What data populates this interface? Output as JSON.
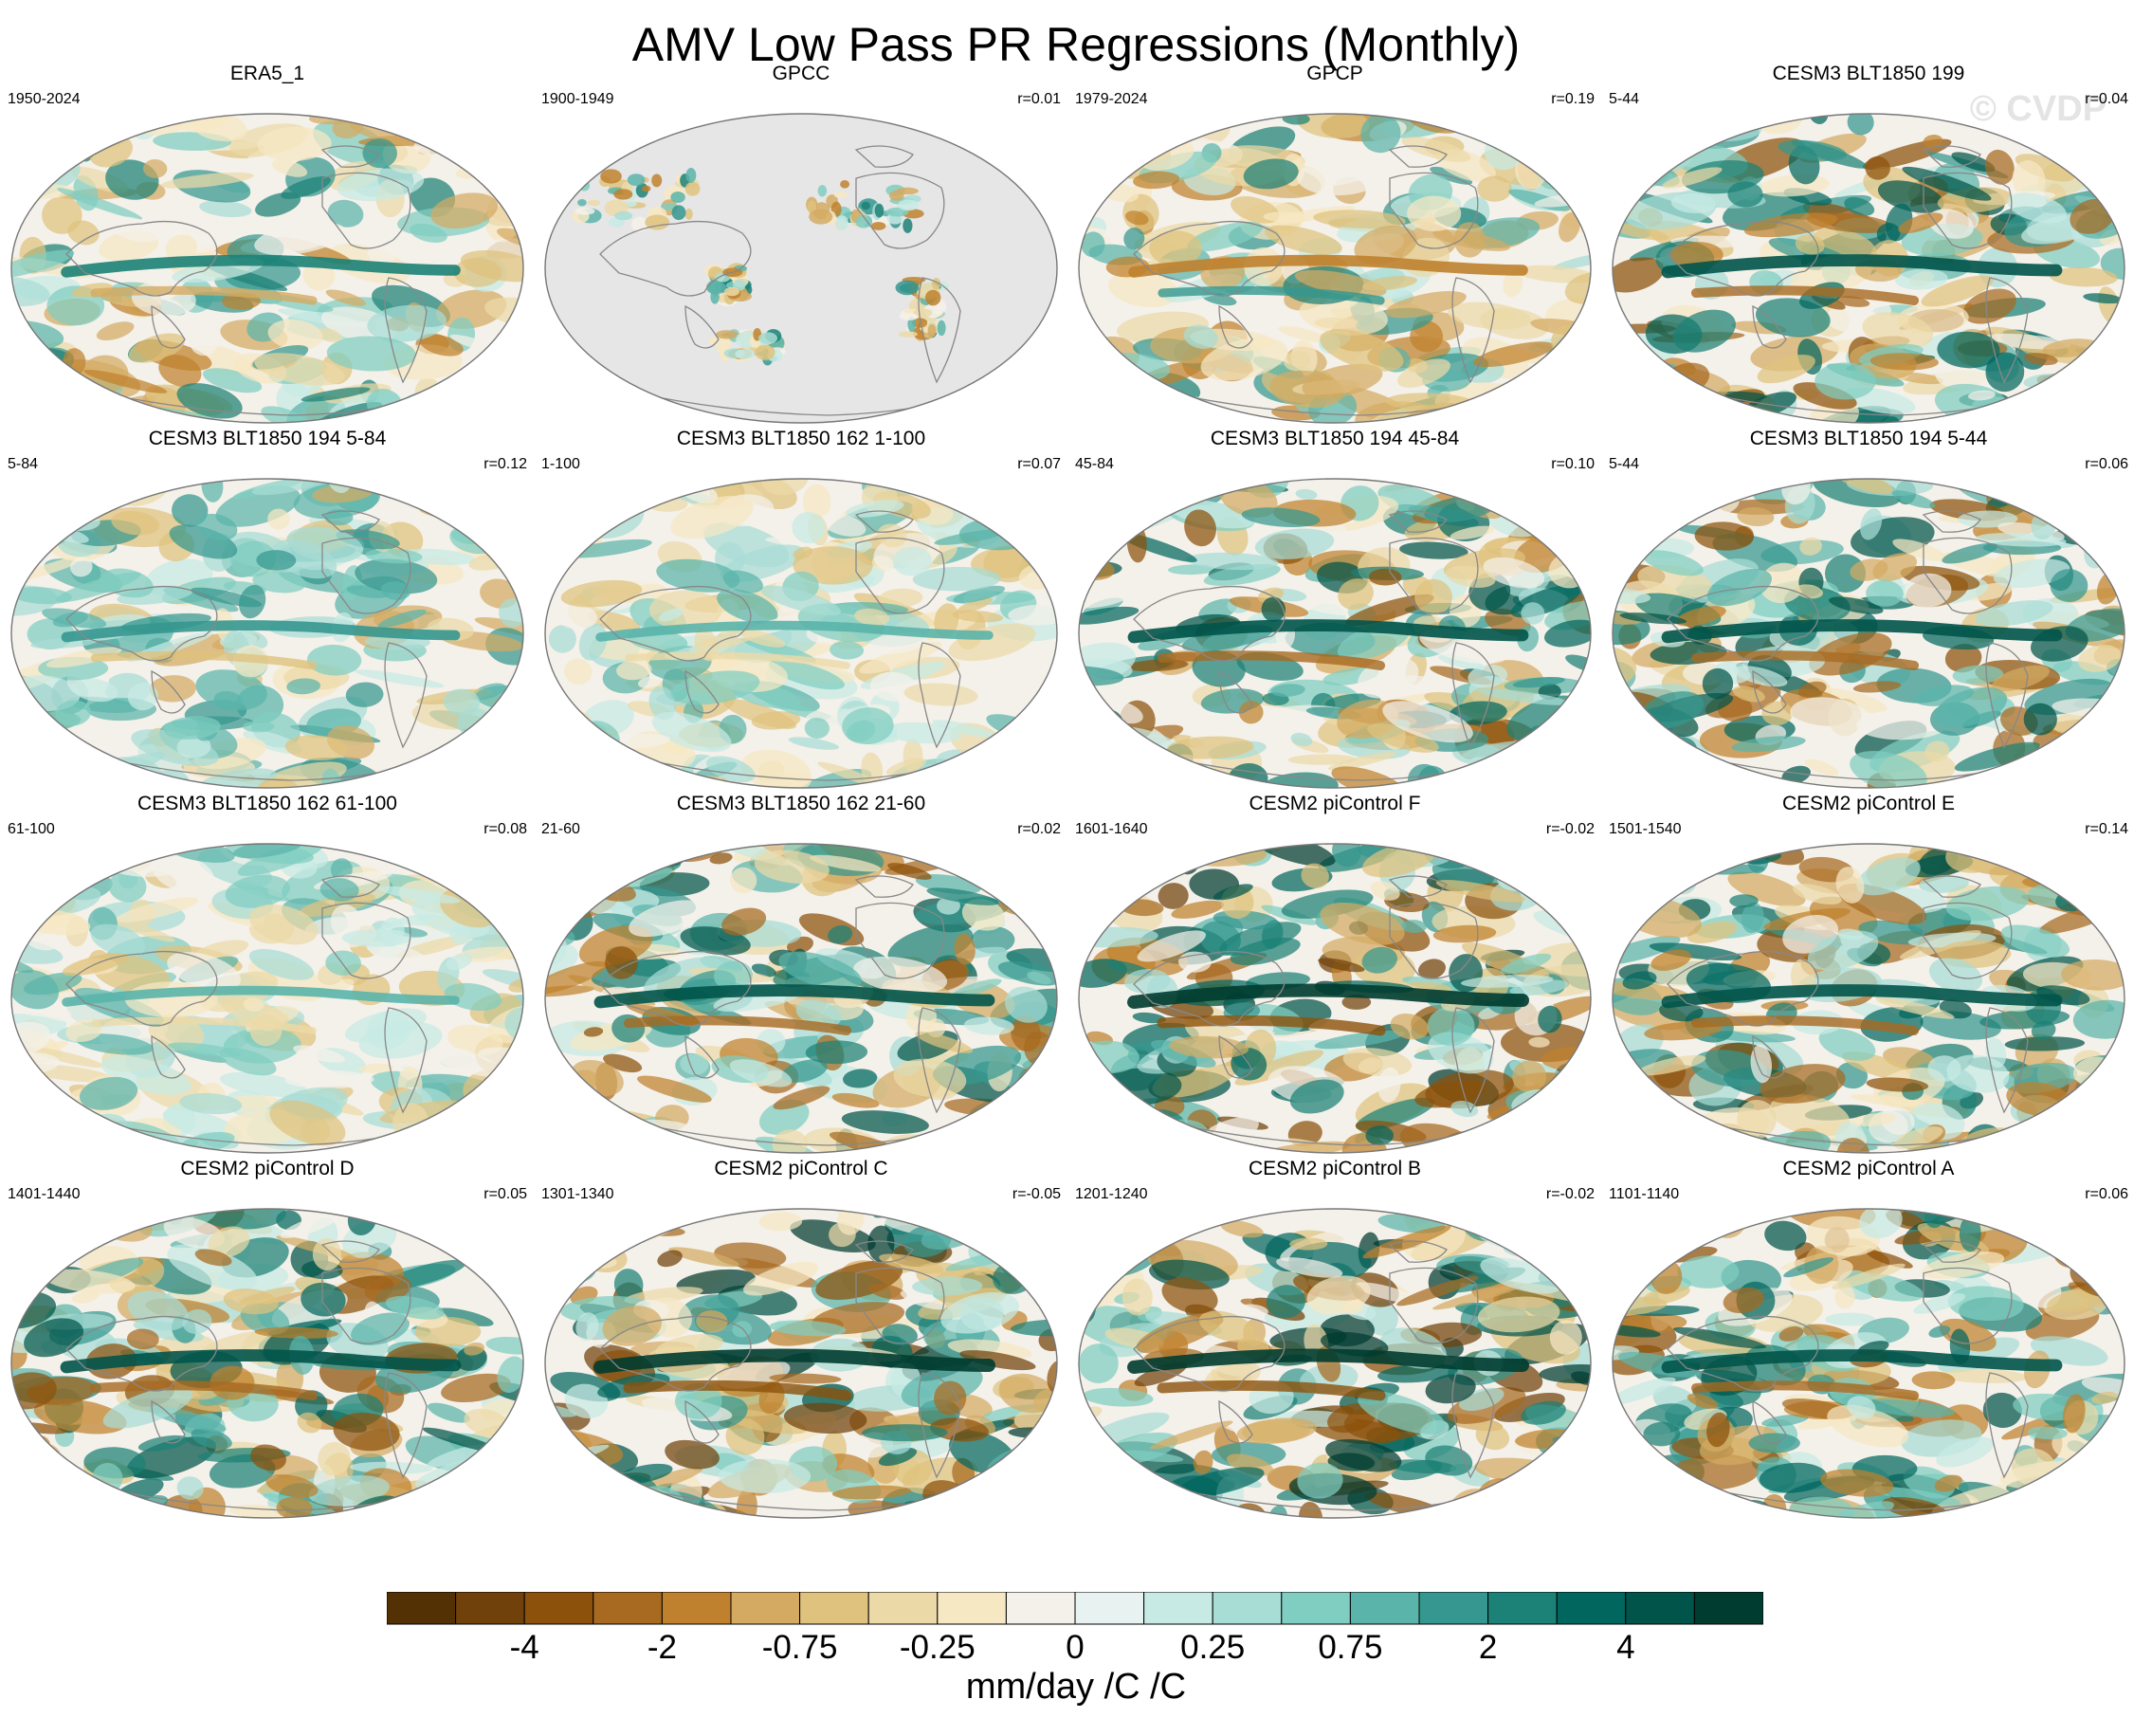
{
  "title": "AMV Low Pass PR Regressions (Monthly)",
  "watermark": "© CVDP",
  "panels": [
    {
      "title": "ERA5_1",
      "period": "1950-2024",
      "corr": "",
      "pattern": "mixed"
    },
    {
      "title": "GPCC",
      "period": "1900-1949",
      "corr": "r=0.01",
      "pattern": "land"
    },
    {
      "title": "GPCP",
      "period": "1979-2024",
      "corr": "r=0.19",
      "pattern": "brown"
    },
    {
      "title": "CESM3 BLT1850 199",
      "period": "5-44",
      "corr": "r=0.04",
      "pattern": "strong"
    },
    {
      "title": "CESM3 BLT1850 194 5-84",
      "period": "5-84",
      "corr": "r=0.12",
      "pattern": "teal"
    },
    {
      "title": "CESM3 BLT1850 162 1-100",
      "period": "1-100",
      "corr": "r=0.07",
      "pattern": "weak"
    },
    {
      "title": "CESM3 BLT1850 194 45-84",
      "period": "45-84",
      "corr": "r=0.10",
      "pattern": "strong"
    },
    {
      "title": "CESM3 BLT1850 194 5-44",
      "period": "5-44",
      "corr": "r=0.06",
      "pattern": "strong"
    },
    {
      "title": "CESM3 BLT1850 162 61-100",
      "period": "61-100",
      "corr": "r=0.08",
      "pattern": "weak"
    },
    {
      "title": "CESM3 BLT1850 162 21-60",
      "period": "21-60",
      "corr": "r=0.02",
      "pattern": "strong"
    },
    {
      "title": "CESM2 piControl F",
      "period": "1601-1640",
      "corr": "r=-0.02",
      "pattern": "vstrong"
    },
    {
      "title": "CESM2 piControl E",
      "period": "1501-1540",
      "corr": "r=0.14",
      "pattern": "strong"
    },
    {
      "title": "CESM2 piControl D",
      "period": "1401-1440",
      "corr": "r=0.05",
      "pattern": "strong"
    },
    {
      "title": "CESM2 piControl C",
      "period": "1301-1340",
      "corr": "r=-0.05",
      "pattern": "vstrong"
    },
    {
      "title": "CESM2 piControl B",
      "period": "1201-1240",
      "corr": "r=-0.02",
      "pattern": "vstrong"
    },
    {
      "title": "CESM2 piControl A",
      "period": "1101-1140",
      "corr": "r=0.06",
      "pattern": "strong"
    }
  ],
  "colorbar": {
    "colors": [
      "#543005",
      "#70410a",
      "#8c510a",
      "#a86920",
      "#bf812d",
      "#d4aa63",
      "#dfc27d",
      "#ecd9a8",
      "#f6e8c3",
      "#f4f1ea",
      "#e8f2f0",
      "#c7eae5",
      "#a8ddd5",
      "#80cdc1",
      "#5ab4aa",
      "#35978f",
      "#1c8176",
      "#01665e",
      "#01544a",
      "#003c30"
    ],
    "labels": [
      {
        "text": "-4",
        "boundary": 2
      },
      {
        "text": "-2",
        "boundary": 4
      },
      {
        "text": "-0.75",
        "boundary": 6
      },
      {
        "text": "-0.25",
        "boundary": 8
      },
      {
        "text": "0",
        "boundary": 10
      },
      {
        "text": "0.25",
        "boundary": 12
      },
      {
        "text": "0.75",
        "boundary": 14
      },
      {
        "text": "2",
        "boundary": 16
      },
      {
        "text": "4",
        "boundary": 18
      }
    ],
    "units": "mm/day /C /C"
  }
}
